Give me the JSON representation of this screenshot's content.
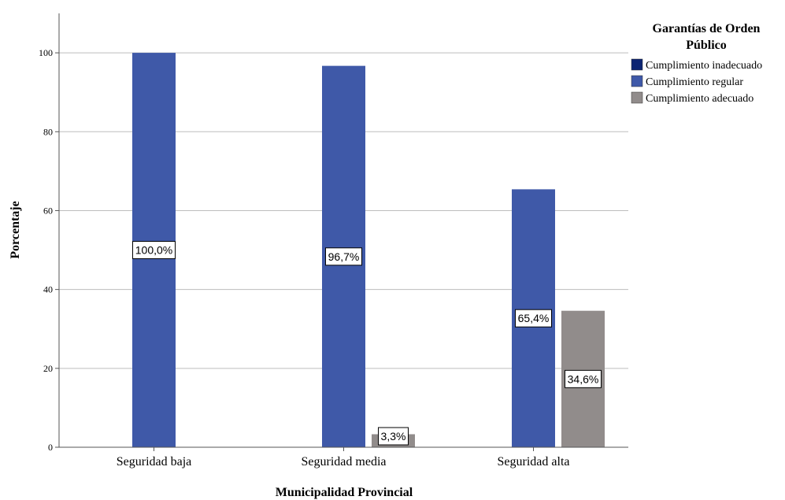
{
  "chart_data": {
    "type": "bar",
    "categories": [
      "Seguridad baja",
      "Seguridad media",
      "Seguridad alta"
    ],
    "series": [
      {
        "name": "Cumplimiento inadecuado",
        "color": "#0c2472",
        "values": [
          0,
          0,
          0
        ],
        "labels": [
          "",
          "",
          ""
        ]
      },
      {
        "name": "Cumplimiento regular",
        "color": "#3f59a8",
        "values": [
          100.0,
          96.7,
          65.4
        ],
        "labels": [
          "100,0%",
          "96,7%",
          "65,4%"
        ]
      },
      {
        "name": "Cumplimiento adecuado",
        "color": "#918c8b",
        "values": [
          0,
          3.3,
          34.6
        ],
        "labels": [
          "",
          "3,3%",
          "34,6%"
        ]
      }
    ],
    "xlabel": "Municipalidad Provincial",
    "ylabel": "Porcentaje",
    "ylim": [
      0,
      110
    ],
    "yticks": [
      0,
      20,
      40,
      60,
      80,
      100
    ],
    "grid": true,
    "legend": {
      "title_line1": "Garantías de Orden",
      "title_line2": "Público",
      "placement": "top-right"
    }
  }
}
